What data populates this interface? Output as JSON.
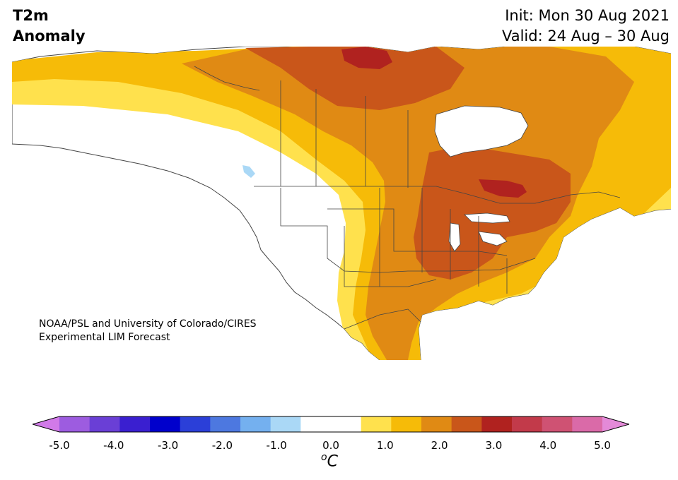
{
  "title": {
    "line1": "T2m",
    "line2": "Anomaly"
  },
  "subtitle": {
    "init": "Init: Mon 30 Aug 2021",
    "valid": "Valid: 24 Aug – 30 Aug"
  },
  "credit": {
    "line1": "NOAA/PSL and University of Colorado/CIRES",
    "line2": "Experimental LIM Forecast"
  },
  "legend": {
    "unit_prefix": "o",
    "unit_main": "C",
    "min": -5.0,
    "max": 5.0,
    "step": 0.5,
    "ticks": [
      "-5.0",
      "-4.0",
      "-3.0",
      "-2.0",
      "-1.0",
      "0.0",
      "1.0",
      "2.0",
      "3.0",
      "4.0",
      "5.0"
    ],
    "colors": [
      "#d17ae8",
      "#9d5ce0",
      "#6a3fd6",
      "#3a1fd0",
      "#0000cc",
      "#2b3fd8",
      "#4d78e0",
      "#74b0ef",
      "#aad8f6",
      "#ffffff",
      "#ffffff",
      "#ffe14d",
      "#f6bb08",
      "#e08a14",
      "#c9561a",
      "#b0221f",
      "#c23a4a",
      "#cf5273",
      "#da6aa8",
      "#e48ad8"
    ]
  },
  "map": {
    "region": "North America",
    "land_color": "#ffffff",
    "border_color": "#333333",
    "zones": [
      {
        "name": "warm-0.5",
        "color": "#ffe14d"
      },
      {
        "name": "warm-1.0",
        "color": "#f6bb08"
      },
      {
        "name": "warm-1.5",
        "color": "#e08a14"
      },
      {
        "name": "warm-2.0",
        "color": "#c9561a"
      },
      {
        "name": "warm-2.5",
        "color": "#b0221f"
      },
      {
        "name": "cool-0.5",
        "color": "#aad8f6"
      }
    ]
  }
}
